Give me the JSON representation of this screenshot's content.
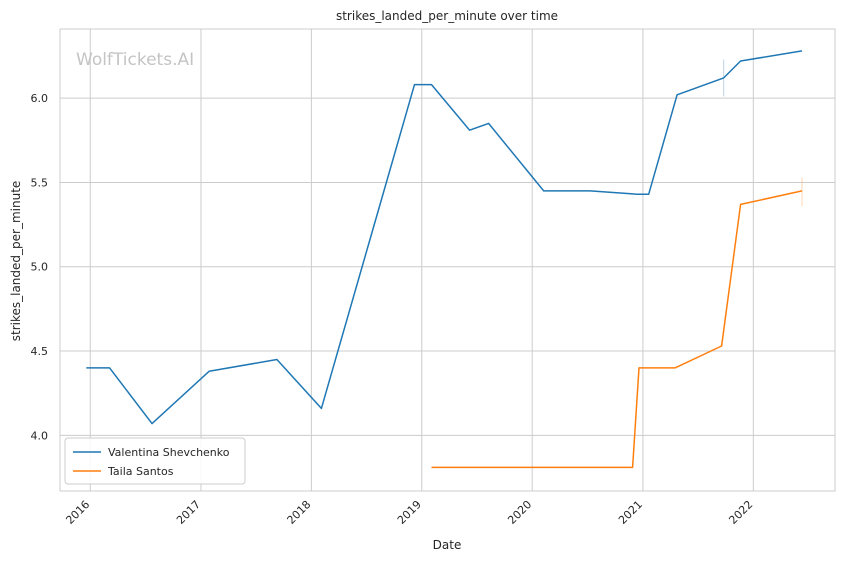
{
  "chart_data": {
    "type": "line",
    "title": "strikes_landed_per_minute over time",
    "xlabel": "Date",
    "ylabel": "strikes_landed_per_minute",
    "watermark": "WolfTickets.AI",
    "xlim": [
      "2015-09-23",
      "2022-09-28"
    ],
    "ylim": [
      3.67,
      6.41
    ],
    "x_ticks": [
      "2016-01-01",
      "2017-01-01",
      "2018-01-01",
      "2019-01-01",
      "2020-01-01",
      "2021-01-01",
      "2022-01-01"
    ],
    "x_tick_labels": [
      "2016",
      "2017",
      "2018",
      "2019",
      "2020",
      "2021",
      "2022"
    ],
    "y_ticks": [
      4.0,
      4.5,
      5.0,
      5.5,
      6.0
    ],
    "y_tick_labels": [
      "4.0",
      "4.5",
      "5.0",
      "5.5",
      "6.0"
    ],
    "grid": true,
    "legend_position": "bottom-left",
    "series": [
      {
        "name": "Valentina Shevchenko",
        "color": "#1f77b4",
        "points": [
          [
            "2015-12-19",
            4.4
          ],
          [
            "2016-03-05",
            4.4
          ],
          [
            "2016-07-23",
            4.07
          ],
          [
            "2017-01-28",
            4.38
          ],
          [
            "2017-09-09",
            4.45
          ],
          [
            "2018-02-03",
            4.16
          ],
          [
            "2018-12-08",
            6.08
          ],
          [
            "2019-02-02",
            6.08
          ],
          [
            "2019-06-08",
            5.81
          ],
          [
            "2019-08-10",
            5.85
          ],
          [
            "2020-02-08",
            5.45
          ],
          [
            "2020-07-11",
            5.45
          ],
          [
            "2020-12-12",
            5.43
          ],
          [
            "2021-01-20",
            5.43
          ],
          [
            "2021-04-24",
            6.02
          ],
          [
            "2021-09-25",
            6.12
          ],
          [
            "2021-11-20",
            6.22
          ],
          [
            "2022-06-11",
            6.28
          ]
        ],
        "error_marks": [
          [
            "2021-09-25",
            6.01,
            6.23
          ]
        ]
      },
      {
        "name": "Taila Santos",
        "color": "#ff7f0e",
        "points": [
          [
            "2019-02-02",
            3.81
          ],
          [
            "2019-06-01",
            3.81
          ],
          [
            "2020-11-28",
            3.81
          ],
          [
            "2020-12-19",
            4.4
          ],
          [
            "2021-04-17",
            4.4
          ],
          [
            "2021-09-18",
            4.53
          ],
          [
            "2021-11-20",
            5.37
          ],
          [
            "2022-06-11",
            5.45
          ]
        ],
        "error_marks": [
          [
            "2022-06-11",
            5.36,
            5.53
          ]
        ]
      }
    ]
  }
}
